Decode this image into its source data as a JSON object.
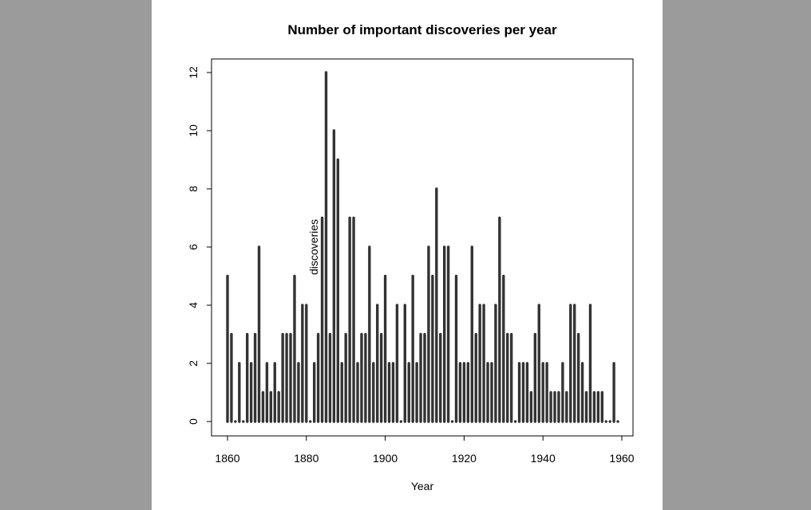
{
  "chart_data": {
    "type": "bar",
    "title": "Number of important discoveries per year",
    "xlabel": "Year",
    "ylabel": "discoveries",
    "x": [
      1860,
      1861,
      1862,
      1863,
      1864,
      1865,
      1866,
      1867,
      1868,
      1869,
      1870,
      1871,
      1872,
      1873,
      1874,
      1875,
      1876,
      1877,
      1878,
      1879,
      1880,
      1881,
      1882,
      1883,
      1884,
      1885,
      1886,
      1887,
      1888,
      1889,
      1890,
      1891,
      1892,
      1893,
      1894,
      1895,
      1896,
      1897,
      1898,
      1899,
      1900,
      1901,
      1902,
      1903,
      1904,
      1905,
      1906,
      1907,
      1908,
      1909,
      1910,
      1911,
      1912,
      1913,
      1914,
      1915,
      1916,
      1917,
      1918,
      1919,
      1920,
      1921,
      1922,
      1923,
      1924,
      1925,
      1926,
      1927,
      1928,
      1929,
      1930,
      1931,
      1932,
      1933,
      1934,
      1935,
      1936,
      1937,
      1938,
      1939,
      1940,
      1941,
      1942,
      1943,
      1944,
      1945,
      1946,
      1947,
      1948,
      1949,
      1950,
      1951,
      1952,
      1953,
      1954,
      1955,
      1956,
      1957,
      1958,
      1959
    ],
    "values": [
      5,
      3,
      0,
      2,
      0,
      3,
      2,
      3,
      6,
      1,
      2,
      1,
      2,
      1,
      3,
      3,
      3,
      5,
      2,
      4,
      4,
      0,
      2,
      3,
      7,
      12,
      3,
      10,
      9,
      2,
      3,
      7,
      7,
      2,
      3,
      3,
      6,
      2,
      4,
      3,
      5,
      2,
      2,
      4,
      0,
      4,
      2,
      5,
      2,
      3,
      3,
      6,
      5,
      8,
      3,
      6,
      6,
      0,
      5,
      2,
      2,
      2,
      6,
      3,
      4,
      4,
      2,
      2,
      4,
      7,
      5,
      3,
      3,
      0,
      2,
      2,
      2,
      1,
      3,
      4,
      2,
      2,
      1,
      1,
      1,
      2,
      1,
      4,
      4,
      3,
      2,
      1,
      4,
      1,
      1,
      1,
      0,
      0,
      2,
      0
    ],
    "xlim": [
      1860,
      1960
    ],
    "ylim": [
      0,
      12
    ],
    "x_ticks": [
      "1860",
      "1880",
      "1900",
      "1920",
      "1940",
      "1960"
    ],
    "y_ticks": [
      "0",
      "2",
      "4",
      "6",
      "8",
      "10",
      "12"
    ],
    "bar_color": "#333333",
    "grid": false
  }
}
